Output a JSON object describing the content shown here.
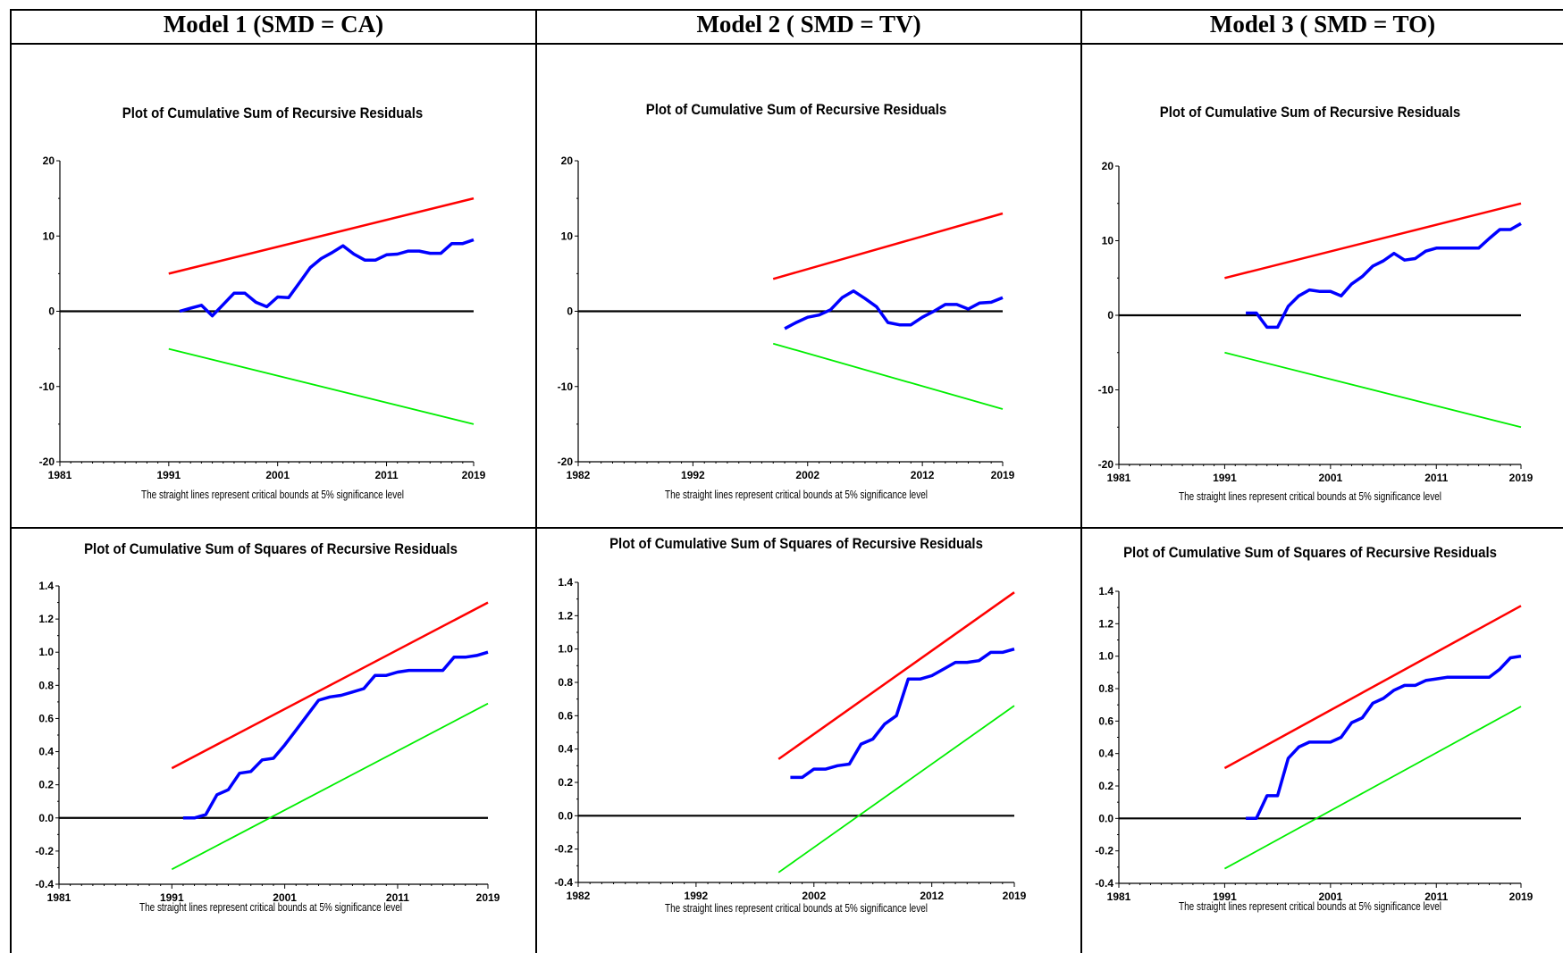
{
  "models": [
    {
      "title": "Model 1 (SMD = CA)"
    },
    {
      "title": "Model 2 ( SMD = TV)"
    },
    {
      "title": "Model 3 ( SMD = TO)"
    }
  ],
  "colors": {
    "upper_bound": "#ff0000",
    "lower_bound": "#00ee00",
    "series": "#0000ff",
    "axis": "#000000"
  },
  "chart_data": [
    {
      "type": "line",
      "title": "Plot of Cumulative Sum of Recursive Residuals",
      "xlabel": "The straight lines represent critical bounds at 5% significance level",
      "x_ticks": [
        "1981",
        "1991",
        "2001",
        "2011",
        "2019"
      ],
      "xlim": [
        1981,
        2019
      ],
      "y_ticks": [
        "20",
        "10",
        "0",
        "-10",
        "-20"
      ],
      "ylim": [
        -20,
        20
      ],
      "series": [
        {
          "role": "upper_bound",
          "x": [
            1991,
            2019
          ],
          "values": [
            5,
            15
          ]
        },
        {
          "role": "lower_bound",
          "x": [
            1991,
            2019
          ],
          "values": [
            -5,
            -15
          ]
        },
        {
          "role": "cusum",
          "x": [
            1992,
            1993,
            1994,
            1995,
            1996,
            1997,
            1998,
            1999,
            2000,
            2001,
            2002,
            2003,
            2004,
            2005,
            2006,
            2007,
            2008,
            2009,
            2010,
            2011,
            2012,
            2013,
            2014,
            2015,
            2016,
            2017,
            2018,
            2019
          ],
          "values": [
            0,
            0.4,
            0.8,
            -0.6,
            0.9,
            2.4,
            2.4,
            1.2,
            0.6,
            1.9,
            1.8,
            3.8,
            5.8,
            7.0,
            7.8,
            8.7,
            7.6,
            6.8,
            6.8,
            7.5,
            7.6,
            8.0,
            8.0,
            7.7,
            7.7,
            9.0,
            9.0,
            9.5
          ]
        }
      ]
    },
    {
      "type": "line",
      "title": "Plot of Cumulative Sum of Recursive Residuals",
      "xlabel": "The straight lines represent critical bounds at 5% significance level",
      "x_ticks": [
        "1982",
        "1992",
        "2002",
        "2012",
        "2019"
      ],
      "xlim": [
        1982,
        2019
      ],
      "y_ticks": [
        "20",
        "10",
        "0",
        "-10",
        "-20"
      ],
      "ylim": [
        -20,
        20
      ],
      "series": [
        {
          "role": "upper_bound",
          "x": [
            1999,
            2019
          ],
          "values": [
            4.3,
            13
          ]
        },
        {
          "role": "lower_bound",
          "x": [
            1999,
            2019
          ],
          "values": [
            -4.3,
            -13
          ]
        },
        {
          "role": "cusum",
          "x": [
            2000,
            2001,
            2002,
            2003,
            2004,
            2005,
            2006,
            2007,
            2008,
            2009,
            2010,
            2011,
            2012,
            2013,
            2014,
            2015,
            2016,
            2017,
            2018,
            2019
          ],
          "values": [
            -2.3,
            -1.5,
            -0.8,
            -0.5,
            0.2,
            1.8,
            2.7,
            1.7,
            0.6,
            -1.5,
            -1.8,
            -1.8,
            -0.8,
            0,
            0.9,
            0.9,
            0.3,
            1.1,
            1.2,
            1.8
          ]
        }
      ]
    },
    {
      "type": "line",
      "title": "Plot of Cumulative Sum of Recursive Residuals",
      "xlabel": "The straight lines represent critical bounds at 5% significance level",
      "x_ticks": [
        "1981",
        "1991",
        "2001",
        "2011",
        "2019"
      ],
      "xlim": [
        1981,
        2019
      ],
      "y_ticks": [
        "20",
        "10",
        "0",
        "-10",
        "-20"
      ],
      "ylim": [
        -20,
        20
      ],
      "series": [
        {
          "role": "upper_bound",
          "x": [
            1991,
            2019
          ],
          "values": [
            5,
            15
          ]
        },
        {
          "role": "lower_bound",
          "x": [
            1991,
            2019
          ],
          "values": [
            -5,
            -15
          ]
        },
        {
          "role": "cusum",
          "x": [
            1993,
            1994,
            1995,
            1996,
            1997,
            1998,
            1999,
            2000,
            2001,
            2002,
            2003,
            2004,
            2005,
            2006,
            2007,
            2008,
            2009,
            2010,
            2011,
            2012,
            2013,
            2014,
            2015,
            2016,
            2017,
            2018,
            2019
          ],
          "values": [
            0.3,
            0.3,
            -1.6,
            -1.6,
            1.2,
            2.6,
            3.4,
            3.2,
            3.2,
            2.6,
            4.2,
            5.2,
            6.6,
            7.3,
            8.3,
            7.4,
            7.6,
            8.6,
            9.0,
            9.0,
            9.0,
            9.0,
            9.0,
            10.3,
            11.5,
            11.5,
            12.3
          ]
        }
      ]
    },
    {
      "type": "line",
      "title": "Plot of Cumulative Sum of Squares of Recursive Residuals",
      "xlabel": "The straight lines represent critical bounds at 5% significance level",
      "x_ticks": [
        "1981",
        "1991",
        "2001",
        "2011",
        "2019"
      ],
      "xlim": [
        1981,
        2019
      ],
      "y_ticks": [
        "1.4",
        "1.2",
        "1.0",
        "0.8",
        "0.6",
        "0.4",
        "0.2",
        "0.0",
        "-0.2",
        "-0.4"
      ],
      "ylim": [
        -0.4,
        1.4
      ],
      "series": [
        {
          "role": "upper_bound",
          "x": [
            1991,
            2019
          ],
          "values": [
            0.3,
            1.3
          ]
        },
        {
          "role": "lower_bound",
          "x": [
            1991,
            2019
          ],
          "values": [
            -0.31,
            0.69
          ]
        },
        {
          "role": "cusum_sq",
          "x": [
            1992,
            1993,
            1994,
            1995,
            1996,
            1997,
            1998,
            1999,
            2000,
            2001,
            2002,
            2003,
            2004,
            2005,
            2006,
            2007,
            2008,
            2009,
            2010,
            2011,
            2012,
            2013,
            2014,
            2015,
            2016,
            2017,
            2018,
            2019
          ],
          "values": [
            0,
            0,
            0.02,
            0.14,
            0.17,
            0.27,
            0.28,
            0.35,
            0.36,
            0.44,
            0.53,
            0.62,
            0.71,
            0.73,
            0.74,
            0.76,
            0.78,
            0.86,
            0.86,
            0.88,
            0.89,
            0.89,
            0.89,
            0.89,
            0.97,
            0.97,
            0.98,
            1.0
          ]
        }
      ]
    },
    {
      "type": "line",
      "title": "Plot of Cumulative Sum of Squares of Recursive Residuals",
      "xlabel": "The straight lines represent critical bounds at 5% significance level",
      "x_ticks": [
        "1982",
        "1992",
        "2002",
        "2012",
        "2019"
      ],
      "xlim": [
        1982,
        2019
      ],
      "y_ticks": [
        "1.4",
        "1.2",
        "1.0",
        "0.8",
        "0.6",
        "0.4",
        "0.2",
        "0.0",
        "-0.2",
        "-0.4"
      ],
      "ylim": [
        -0.4,
        1.4
      ],
      "series": [
        {
          "role": "upper_bound",
          "x": [
            1999,
            2019
          ],
          "values": [
            0.34,
            1.34
          ]
        },
        {
          "role": "lower_bound",
          "x": [
            1999,
            2019
          ],
          "values": [
            -0.34,
            0.66
          ]
        },
        {
          "role": "cusum_sq",
          "x": [
            2000,
            2001,
            2002,
            2003,
            2004,
            2005,
            2006,
            2007,
            2008,
            2009,
            2010,
            2011,
            2012,
            2013,
            2014,
            2015,
            2016,
            2017,
            2018,
            2019
          ],
          "values": [
            0.23,
            0.23,
            0.28,
            0.28,
            0.3,
            0.31,
            0.43,
            0.46,
            0.55,
            0.6,
            0.82,
            0.82,
            0.84,
            0.88,
            0.92,
            0.92,
            0.93,
            0.98,
            0.98,
            1.0
          ]
        }
      ]
    },
    {
      "type": "line",
      "title": "Plot of Cumulative Sum of Squares of Recursive Residuals",
      "xlabel": "The straight lines represent critical bounds at 5% significance level",
      "x_ticks": [
        "1981",
        "1991",
        "2001",
        "2011",
        "2019"
      ],
      "xlim": [
        1981,
        2019
      ],
      "y_ticks": [
        "1.4",
        "1.2",
        "1.0",
        "0.8",
        "0.6",
        "0.4",
        "0.2",
        "0.0",
        "-0.2",
        "-0.4"
      ],
      "ylim": [
        -0.4,
        1.4
      ],
      "series": [
        {
          "role": "upper_bound",
          "x": [
            1991,
            2019
          ],
          "values": [
            0.31,
            1.31
          ]
        },
        {
          "role": "lower_bound",
          "x": [
            1991,
            2019
          ],
          "values": [
            -0.31,
            0.69
          ]
        },
        {
          "role": "cusum_sq",
          "x": [
            1993,
            1994,
            1995,
            1996,
            1997,
            1998,
            1999,
            2000,
            2001,
            2002,
            2003,
            2004,
            2005,
            2006,
            2007,
            2008,
            2009,
            2010,
            2011,
            2012,
            2013,
            2014,
            2015,
            2016,
            2017,
            2018,
            2019
          ],
          "values": [
            0,
            0,
            0.14,
            0.14,
            0.37,
            0.44,
            0.47,
            0.47,
            0.47,
            0.5,
            0.59,
            0.62,
            0.71,
            0.74,
            0.79,
            0.82,
            0.82,
            0.85,
            0.86,
            0.87,
            0.87,
            0.87,
            0.87,
            0.87,
            0.92,
            0.99,
            1.0
          ]
        }
      ]
    }
  ]
}
